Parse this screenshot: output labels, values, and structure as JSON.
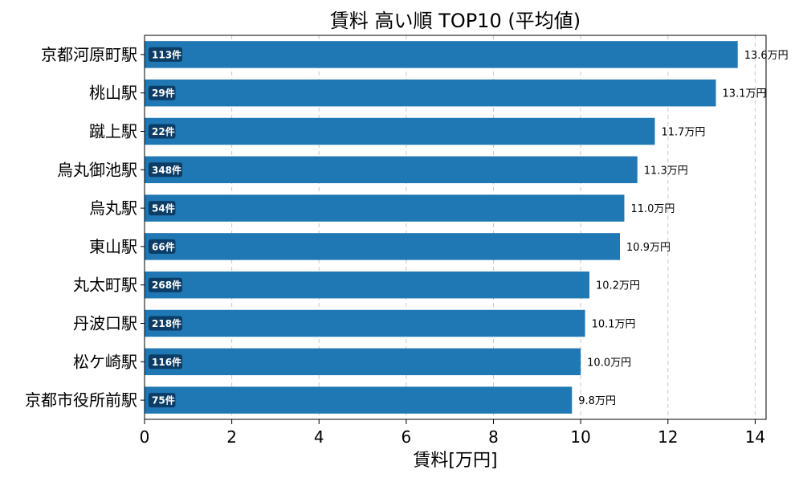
{
  "chart_data": {
    "type": "bar",
    "orientation": "horizontal",
    "title": "賃料 高い順 TOP10 (平均値)",
    "xlabel": "賃料[万円]",
    "ylabel": "",
    "xlim": [
      0,
      14.25
    ],
    "xticks": [
      "0",
      "2",
      "4",
      "6",
      "8",
      "10",
      "12",
      "14"
    ],
    "grid": "x-dashed",
    "bar_color": "#1f77b4",
    "badge_color": "#0b3d66",
    "categories": [
      "京都河原町駅",
      "桃山駅",
      "蹴上駅",
      "烏丸御池駅",
      "烏丸駅",
      "東山駅",
      "丸太町駅",
      "丹波口駅",
      "松ケ崎駅",
      "京都市役所前駅"
    ],
    "values": [
      13.6,
      13.1,
      11.7,
      11.3,
      11.0,
      10.9,
      10.2,
      10.1,
      10.0,
      9.8
    ],
    "value_labels": [
      "13.6万円",
      "13.1万円",
      "11.7万円",
      "11.3万円",
      "11.0万円",
      "10.9万円",
      "10.2万円",
      "10.1万円",
      "10.0万円",
      "9.8万円"
    ],
    "counts": [
      "113件",
      "29件",
      "22件",
      "348件",
      "54件",
      "66件",
      "268件",
      "218件",
      "116件",
      "75件"
    ]
  }
}
